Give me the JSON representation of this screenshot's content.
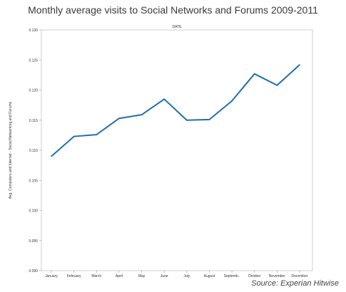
{
  "title": "Monthly average visits to Social Networks and Forums 2009-2011",
  "source": "Source: Experian Hitwise",
  "colors": {
    "line": "#1f6fb0",
    "frame": "#cfcfcf",
    "grid": "#dddddd"
  },
  "chart_data": {
    "type": "line",
    "title": "Monthly average visits to Social Networks and Forums 2009-2011",
    "xlabel": "DATE",
    "ylabel": "Avg. Computers and Internet - Social Networking and Forums",
    "categories": [
      "January",
      "February",
      "March",
      "April",
      "May",
      "June",
      "July",
      "August",
      "Septemb..",
      "October",
      "November",
      "December"
    ],
    "series": [
      {
        "values": [
          0.109,
          0.1123,
          0.1126,
          0.1153,
          0.1159,
          0.1185,
          0.115,
          0.1151,
          0.1182,
          0.1227,
          0.1208,
          0.1242
        ]
      }
    ],
    "ylim": [
      0.09,
      0.13
    ],
    "yticks": [
      "0.130",
      "0.125",
      "0.120",
      "0.115",
      "0.110",
      "0.105",
      "0.100",
      "0.095",
      "0.090"
    ],
    "grid": false
  }
}
